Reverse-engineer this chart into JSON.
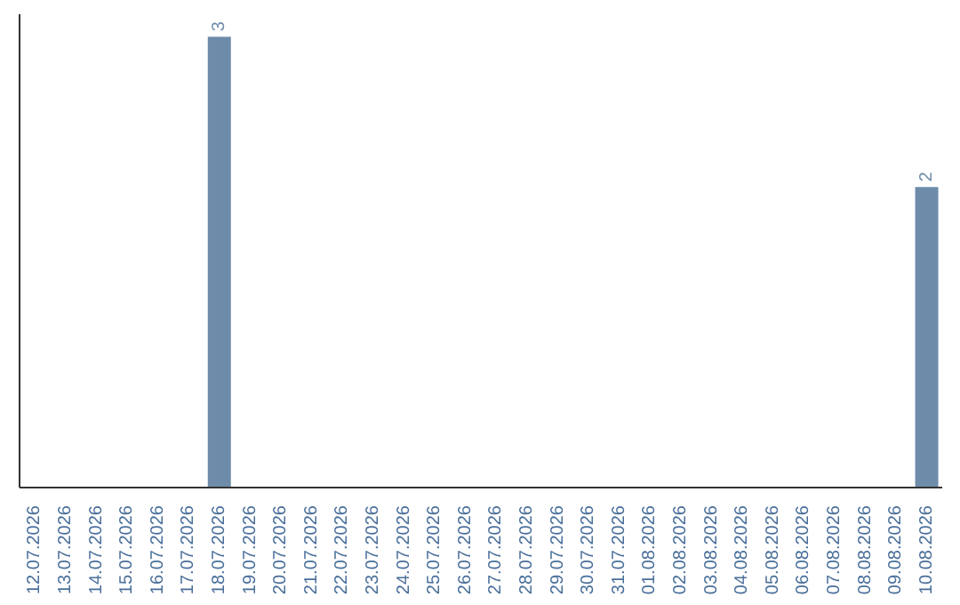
{
  "chart_data": {
    "type": "bar",
    "categories": [
      "12.07.2026",
      "13.07.2026",
      "14.07.2026",
      "15.07.2026",
      "16.07.2026",
      "17.07.2026",
      "18.07.2026",
      "19.07.2026",
      "20.07.2026",
      "21.07.2026",
      "22.07.2026",
      "23.07.2026",
      "24.07.2026",
      "25.07.2026",
      "26.07.2026",
      "27.07.2026",
      "28.07.2026",
      "29.07.2026",
      "30.07.2026",
      "31.07.2026",
      "01.08.2026",
      "02.08.2026",
      "03.08.2026",
      "04.08.2026",
      "05.08.2026",
      "06.08.2026",
      "07.08.2026",
      "08.08.2026",
      "09.08.2026",
      "10.08.2026"
    ],
    "values": [
      0,
      0,
      0,
      0,
      0,
      0,
      3,
      0,
      0,
      0,
      0,
      0,
      0,
      0,
      0,
      0,
      0,
      0,
      0,
      0,
      0,
      0,
      0,
      0,
      0,
      0,
      0,
      0,
      0,
      2
    ],
    "value_labels": [
      null,
      null,
      null,
      null,
      null,
      null,
      "3",
      null,
      null,
      null,
      null,
      null,
      null,
      null,
      null,
      null,
      null,
      null,
      null,
      null,
      null,
      null,
      null,
      null,
      null,
      null,
      null,
      null,
      null,
      "2"
    ],
    "color": "#6e8caa",
    "tick_labels": "x",
    "grid": false,
    "legend": false
  }
}
